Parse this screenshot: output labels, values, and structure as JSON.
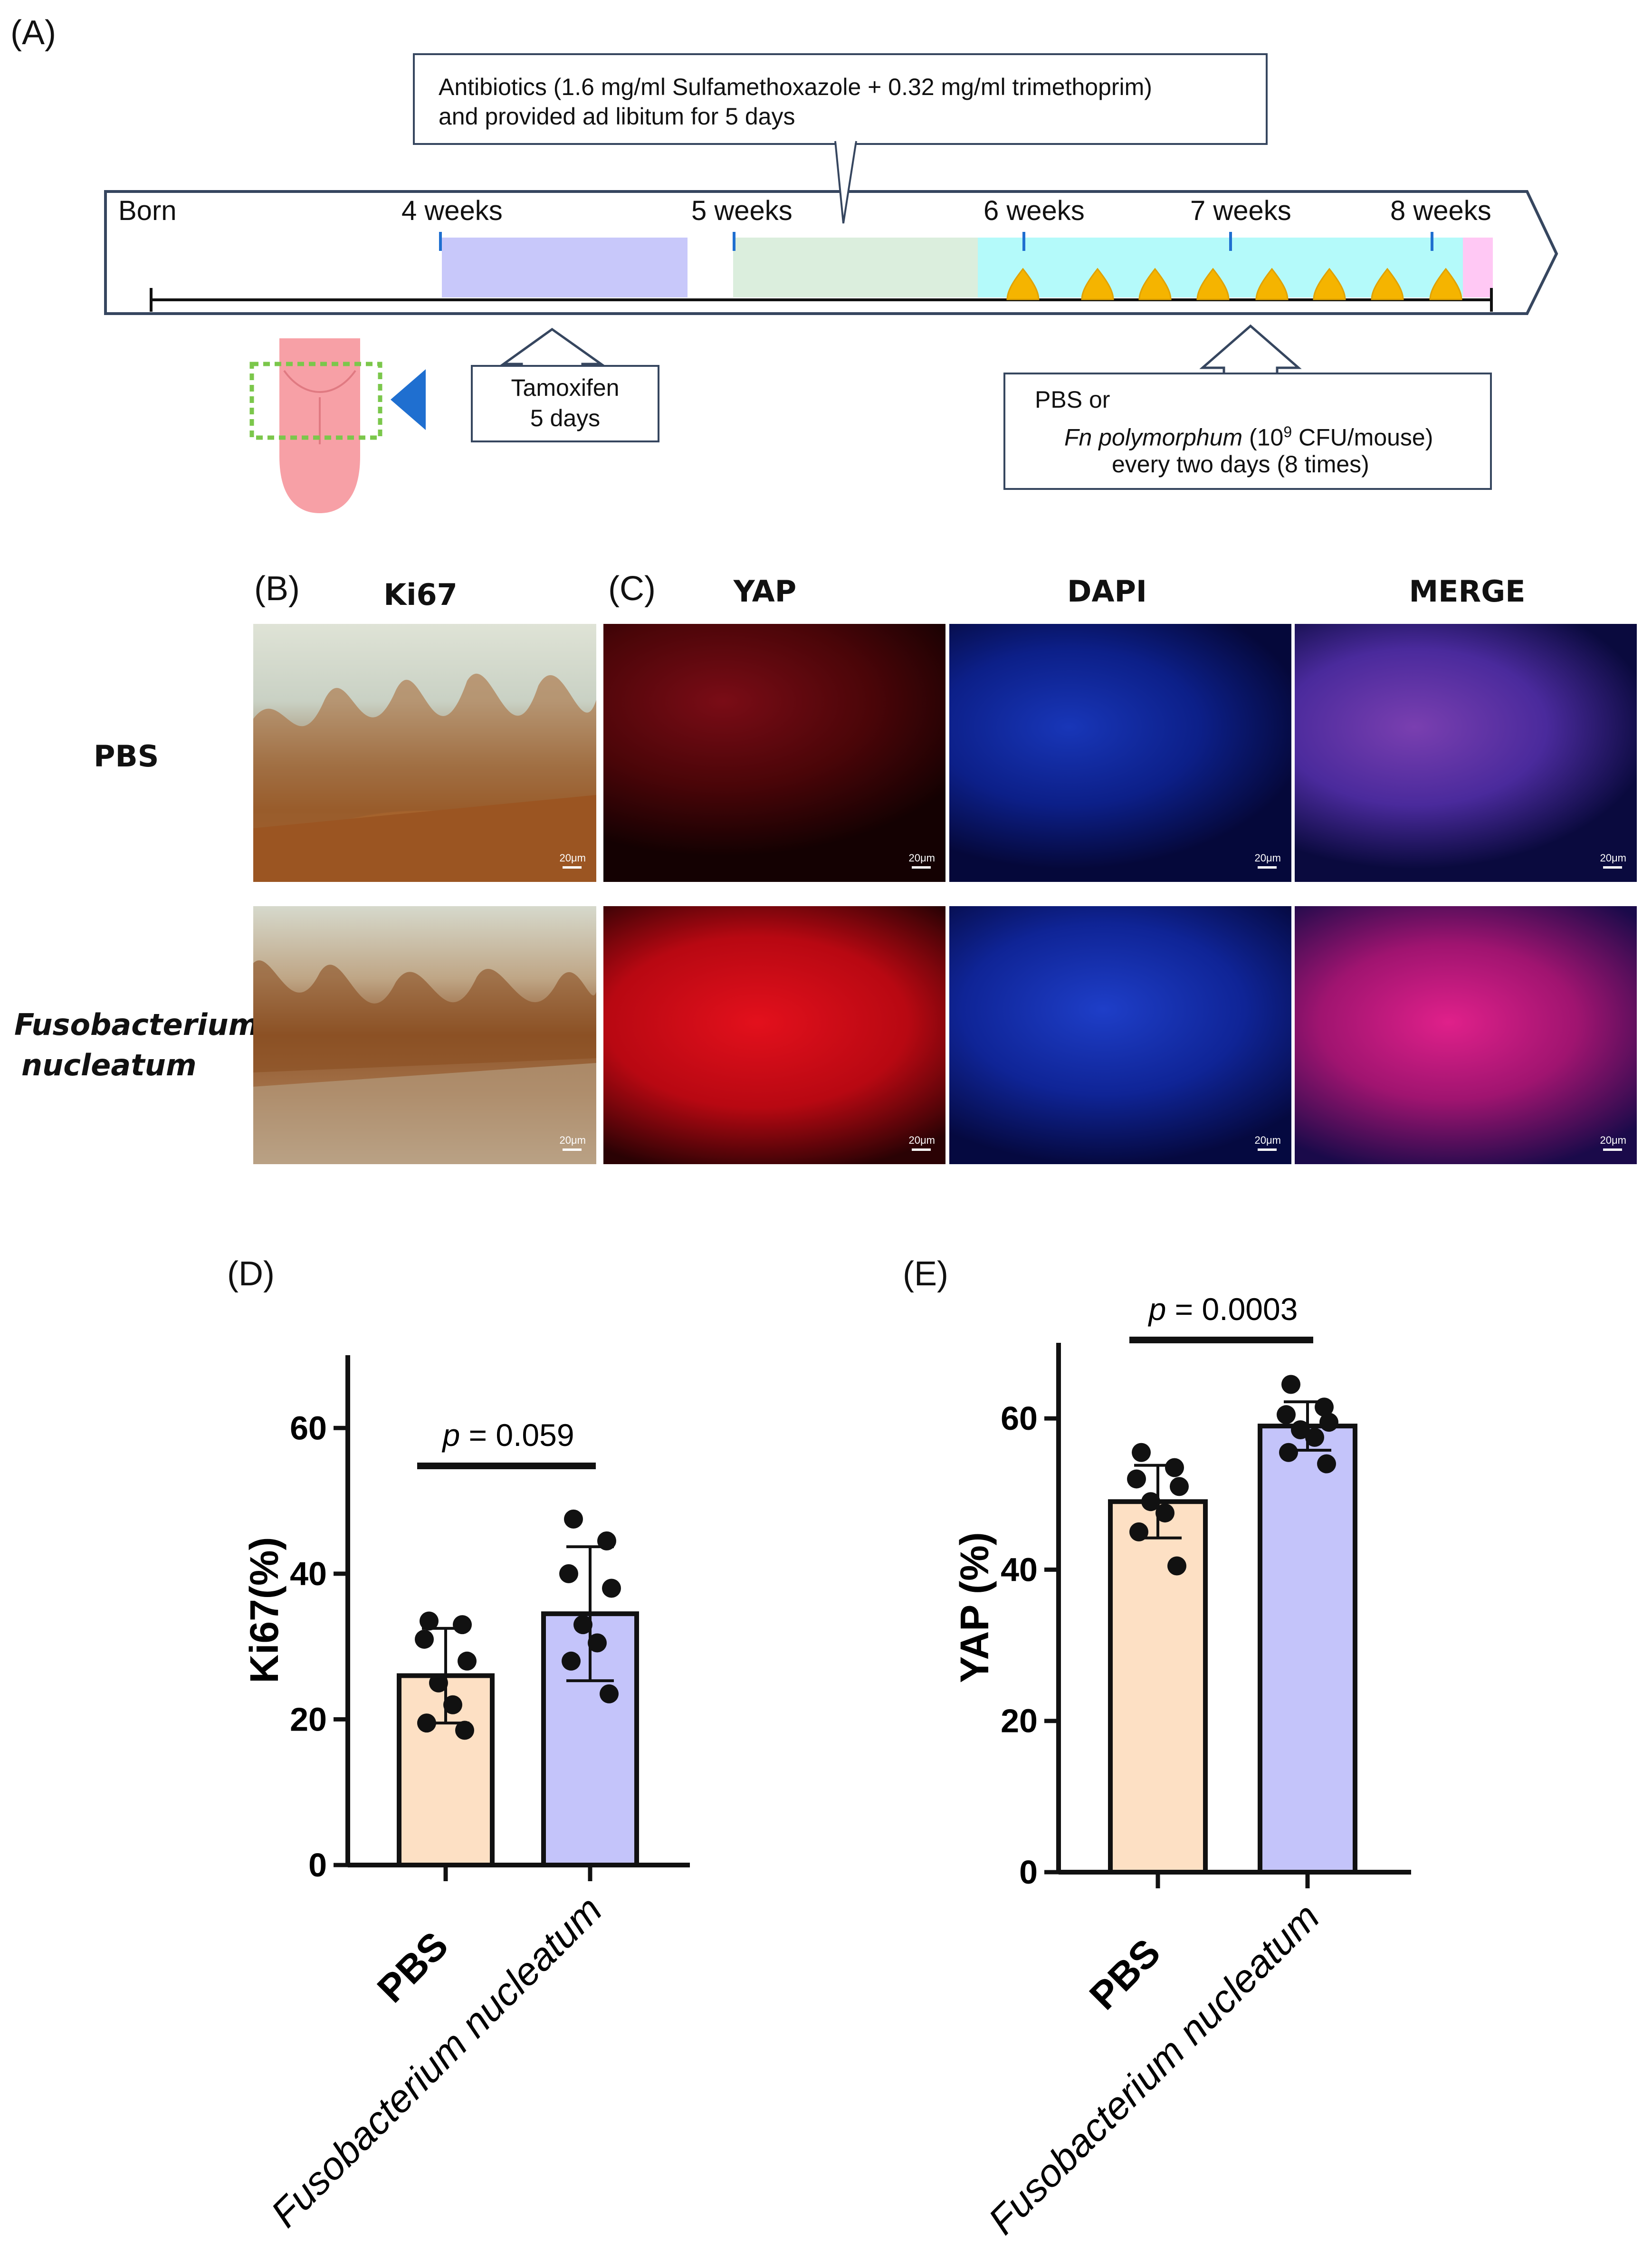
{
  "panel_labels": {
    "A": "(A)",
    "B": "(B)",
    "C": "(C)",
    "D": "(D)",
    "E": "(E)"
  },
  "timeline": {
    "antibiotics_line1": "Antibiotics (1.6 mg/ml Sulfamethoxazole + 0.32 mg/ml trimethoprim)",
    "antibiotics_line2": "and provided ad libitum for 5 days",
    "born": "Born",
    "week4": "4 weeks",
    "week5": "5 weeks",
    "week6": "6 weeks",
    "week7": "7 weeks",
    "week8": "8 weeks",
    "tamoxifen_line1": "Tamoxifen",
    "tamoxifen_line2": "5 days",
    "treat_line1": "PBS or",
    "treat_italic": "Fn polymorphum",
    "treat_rest_pre": " (10",
    "treat_sup": "9",
    "treat_rest_post": " CFU/mouse)",
    "treat_line3": "every two days (8 times)",
    "colors": {
      "tamoxifen": "#c8c8fa",
      "antibiotics": "#dbeedd",
      "treatment": "#b4fafa",
      "end": "#ffc8f4",
      "arrowhead": "#f5b400",
      "tongue": "#f7a0a6",
      "marker": "#1f6fd0",
      "dash": "#7bc74b"
    }
  },
  "micro": {
    "col_ki67": "Ki67",
    "col_yap": "YAP",
    "col_dapi": "DAPI",
    "col_merge": "MERGE",
    "row_pbs": "PBS",
    "row_fn_line1": "Fusobacterium",
    "row_fn_line2": "nucleatum",
    "scale": "20μm"
  },
  "chart_data": [
    {
      "type": "bar",
      "categories": [
        "PBS",
        "Fusobacterium nucleatum"
      ],
      "values": [
        26,
        34.5
      ],
      "error": [
        6.5,
        9.2
      ],
      "points": [
        [
          33.5,
          33,
          31,
          28,
          25,
          22,
          19.5,
          18.5
        ],
        [
          47.5,
          44.5,
          40,
          38,
          33,
          30.5,
          28,
          23.5
        ]
      ],
      "ylabel": "Ki67(%)",
      "ylim": [
        0,
        70
      ],
      "yticks": [
        0,
        20,
        40,
        60
      ],
      "annotation_p": "p",
      "annotation_value": " = 0.059",
      "bar_colors": [
        "#fde0c4",
        "#c4c4fa"
      ],
      "grid": false
    },
    {
      "type": "bar",
      "categories": [
        "PBS",
        "Fusobacterium nucleatum"
      ],
      "values": [
        49,
        59
      ],
      "error": [
        4.8,
        3.2
      ],
      "points": [
        [
          55.5,
          53.5,
          52,
          51,
          49,
          47.5,
          45,
          40.5
        ],
        [
          64.5,
          61.5,
          60.5,
          59.5,
          58.5,
          57.5,
          55.5,
          54
        ]
      ],
      "ylabel": "YAP (%)",
      "ylim": [
        0,
        70
      ],
      "yticks": [
        0,
        20,
        40,
        60
      ],
      "annotation_p": "p",
      "annotation_value": " = 0.0003",
      "bar_colors": [
        "#fde0c4",
        "#c4c4fa"
      ],
      "grid": false
    }
  ]
}
